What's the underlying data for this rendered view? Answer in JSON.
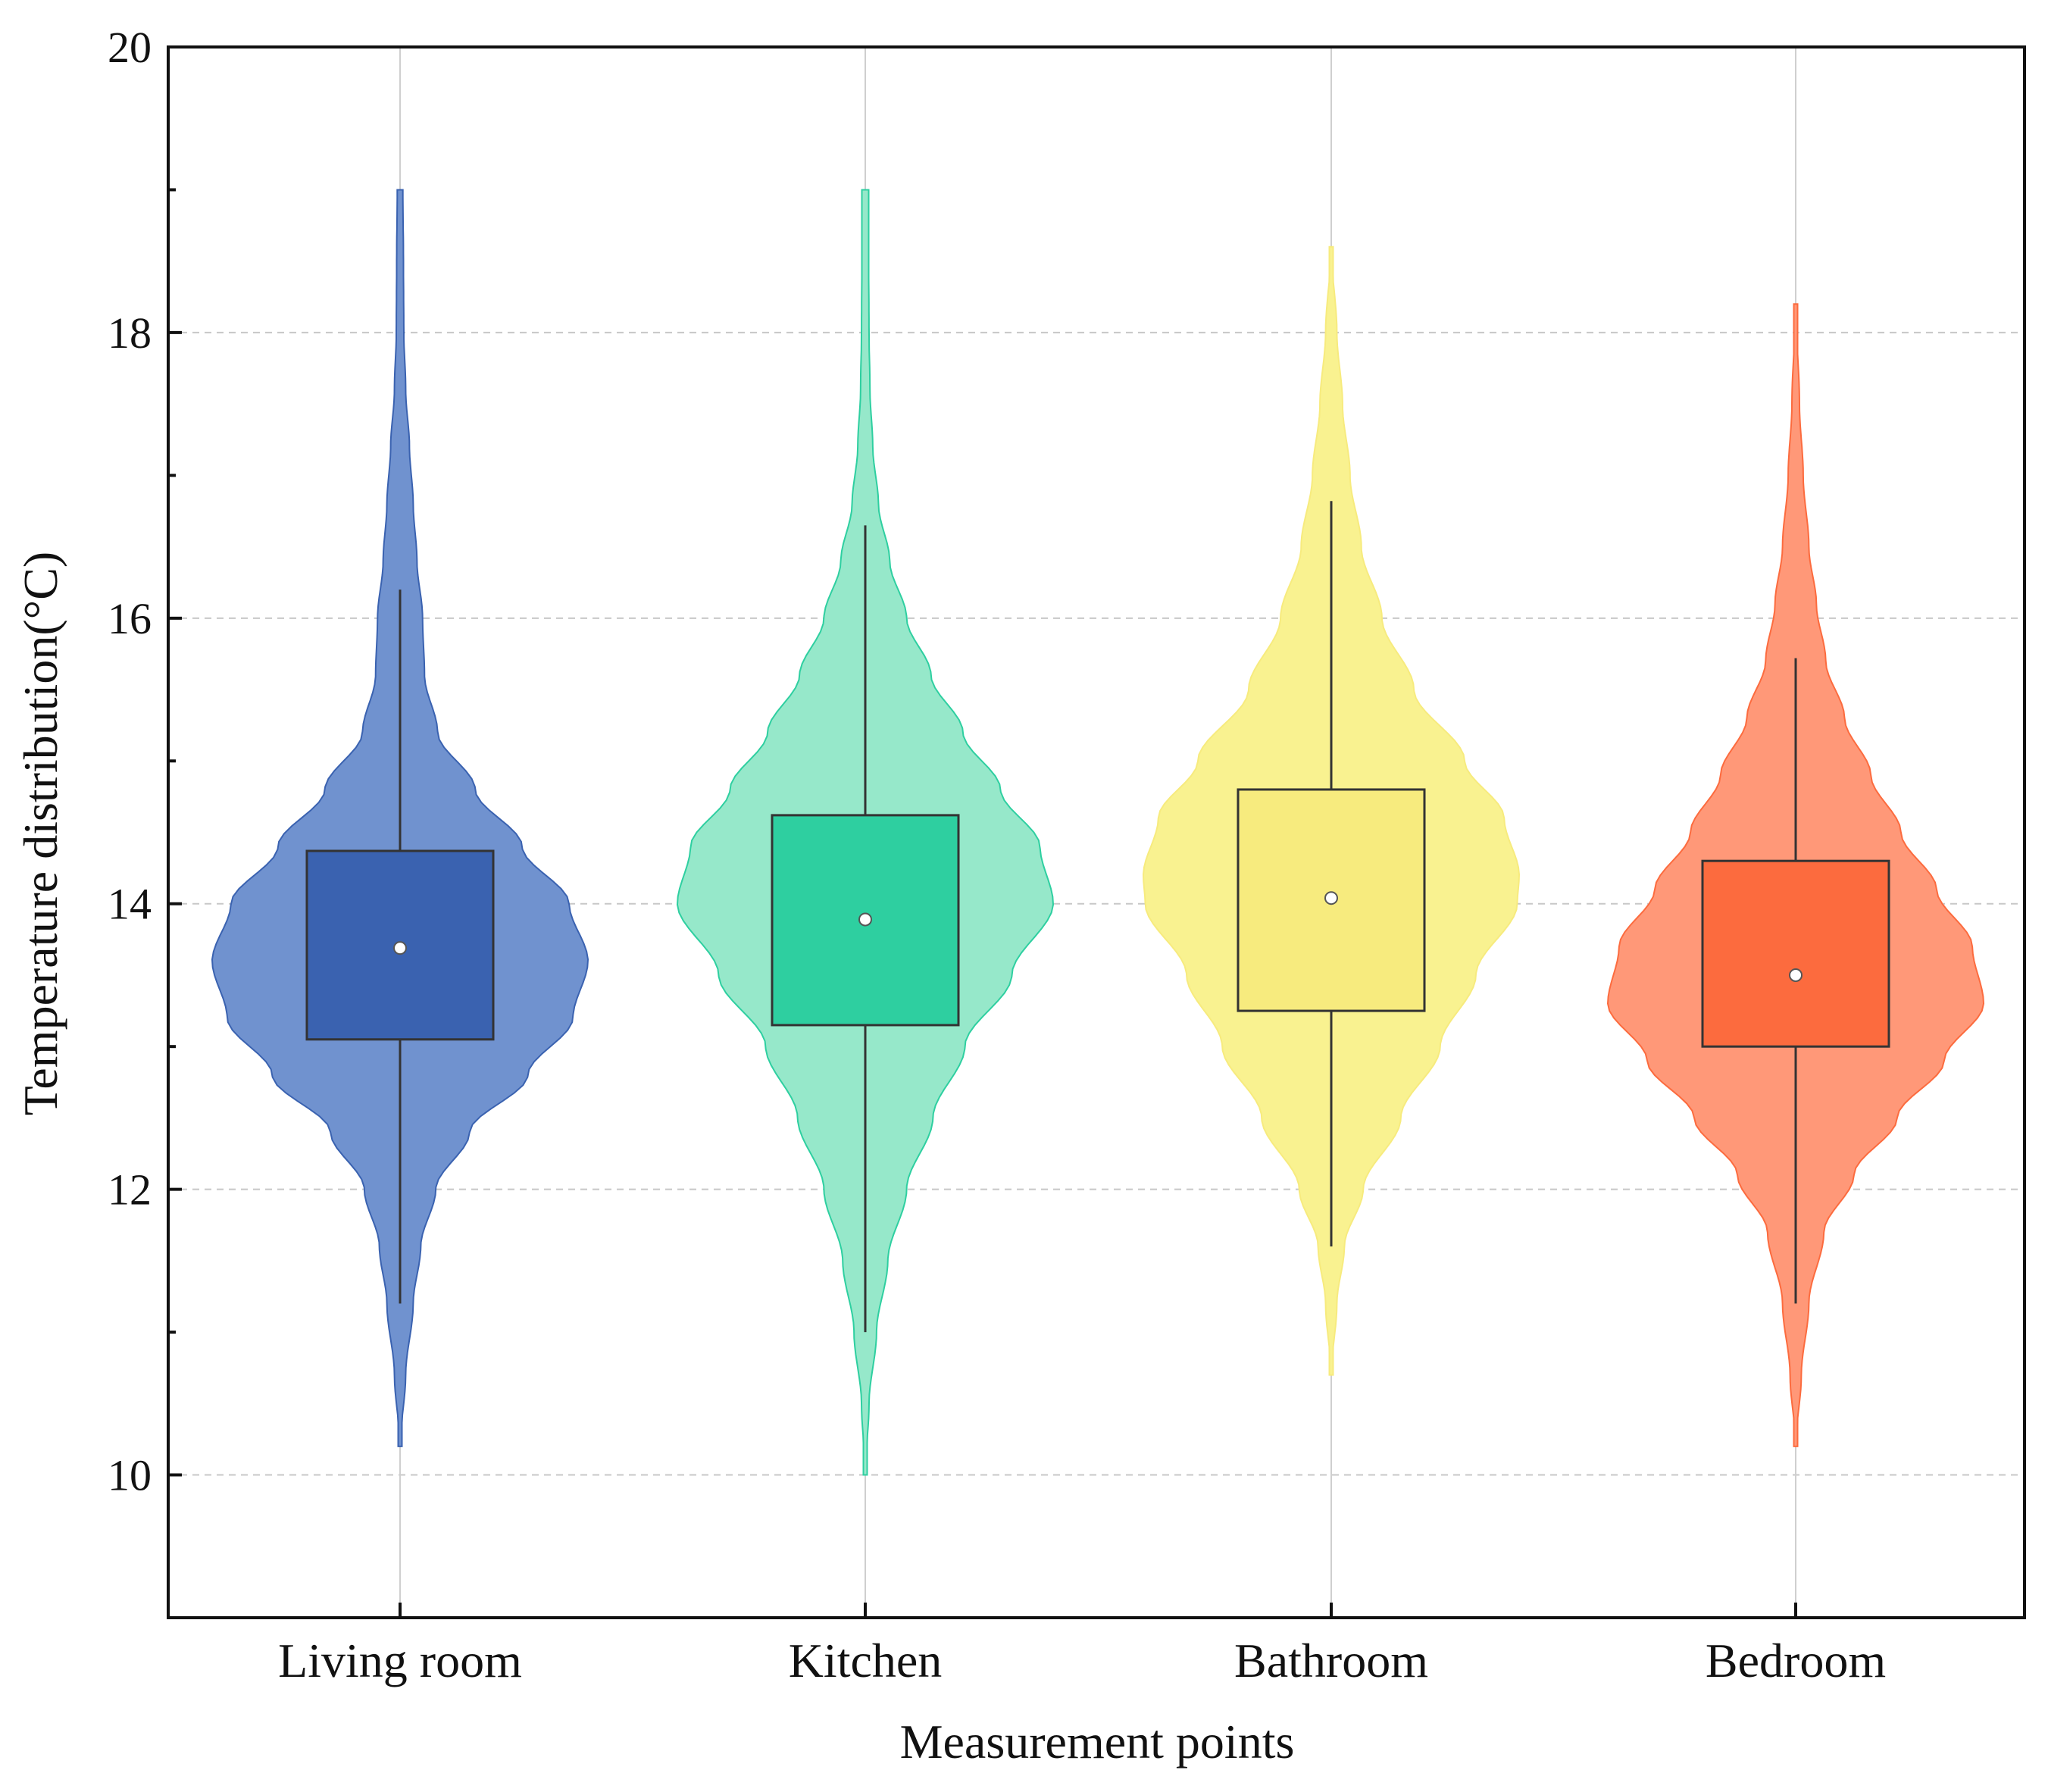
{
  "chart_data": {
    "type": "violin",
    "xlabel": "Measurement points",
    "ylabel": "Temperature distribution(°C)",
    "ylim": [
      9,
      20
    ],
    "yticks": [
      10,
      12,
      14,
      16,
      18,
      20
    ],
    "grid": {
      "horizontal": "dashed",
      "vertical": "solid"
    },
    "categories": [
      "Living room",
      "Kitchen",
      "Bathroom",
      "Bedroom"
    ],
    "series": [
      {
        "name": "Living room",
        "color": "#3A62B0",
        "violin_color": "#7092CF",
        "min": 10.2,
        "max": 19.0,
        "whisker_low": 11.2,
        "whisker_high": 16.2,
        "q1": 13.05,
        "q3": 14.37,
        "mean": 13.69,
        "density": [
          [
            10.2,
            0.0
          ],
          [
            10.7,
            0.03
          ],
          [
            11.2,
            0.07
          ],
          [
            11.6,
            0.11
          ],
          [
            12.0,
            0.19
          ],
          [
            12.4,
            0.37
          ],
          [
            12.8,
            0.68
          ],
          [
            13.2,
            0.92
          ],
          [
            13.6,
            1.0
          ],
          [
            14.0,
            0.9
          ],
          [
            14.4,
            0.65
          ],
          [
            14.8,
            0.4
          ],
          [
            15.2,
            0.2
          ],
          [
            15.6,
            0.13
          ],
          [
            16.0,
            0.12
          ],
          [
            16.4,
            0.09
          ],
          [
            16.8,
            0.07
          ],
          [
            17.2,
            0.05
          ],
          [
            17.6,
            0.03
          ],
          [
            18.0,
            0.02
          ],
          [
            18.5,
            0.018
          ],
          [
            19.0,
            0.015
          ]
        ]
      },
      {
        "name": "Kitchen",
        "color": "#2ECFA0",
        "violin_color": "#96E8CA",
        "min": 10.0,
        "max": 19.0,
        "whisker_low": 11.0,
        "whisker_high": 16.65,
        "q1": 13.15,
        "q3": 14.62,
        "mean": 13.89,
        "density": [
          [
            10.0,
            0.0
          ],
          [
            10.5,
            0.02
          ],
          [
            11.0,
            0.06
          ],
          [
            11.5,
            0.12
          ],
          [
            12.0,
            0.22
          ],
          [
            12.5,
            0.36
          ],
          [
            13.0,
            0.53
          ],
          [
            13.5,
            0.78
          ],
          [
            14.0,
            1.0
          ],
          [
            14.4,
            0.93
          ],
          [
            14.8,
            0.72
          ],
          [
            15.2,
            0.52
          ],
          [
            15.6,
            0.35
          ],
          [
            16.0,
            0.22
          ],
          [
            16.4,
            0.13
          ],
          [
            16.8,
            0.07
          ],
          [
            17.2,
            0.04
          ],
          [
            17.6,
            0.025
          ],
          [
            18.0,
            0.02
          ],
          [
            18.5,
            0.018
          ],
          [
            19.0,
            0.018
          ]
        ]
      },
      {
        "name": "Bathroom",
        "color": "#F7EB7E",
        "violin_color": "#F9F290",
        "min": 10.7,
        "max": 18.6,
        "whisker_low": 11.6,
        "whisker_high": 16.82,
        "q1": 13.25,
        "q3": 14.8,
        "mean": 14.04,
        "density": [
          [
            10.7,
            0.0
          ],
          [
            11.2,
            0.03
          ],
          [
            11.6,
            0.07
          ],
          [
            12.0,
            0.17
          ],
          [
            12.5,
            0.37
          ],
          [
            13.0,
            0.58
          ],
          [
            13.5,
            0.77
          ],
          [
            14.0,
            0.99
          ],
          [
            14.2,
            1.0
          ],
          [
            14.6,
            0.92
          ],
          [
            15.0,
            0.71
          ],
          [
            15.5,
            0.44
          ],
          [
            16.0,
            0.27
          ],
          [
            16.5,
            0.16
          ],
          [
            17.0,
            0.1
          ],
          [
            17.5,
            0.06
          ],
          [
            18.0,
            0.03
          ],
          [
            18.6,
            0.0
          ]
        ]
      },
      {
        "name": "Bedroom",
        "color": "#FC6B3E",
        "violin_color": "#FF9878",
        "min": 10.2,
        "max": 18.2,
        "whisker_low": 11.2,
        "whisker_high": 15.72,
        "q1": 13.0,
        "q3": 14.3,
        "mean": 13.5,
        "density": [
          [
            10.2,
            0.0
          ],
          [
            10.7,
            0.03
          ],
          [
            11.2,
            0.07
          ],
          [
            11.7,
            0.15
          ],
          [
            12.1,
            0.31
          ],
          [
            12.5,
            0.54
          ],
          [
            12.9,
            0.79
          ],
          [
            13.3,
            1.0
          ],
          [
            13.7,
            0.94
          ],
          [
            14.1,
            0.75
          ],
          [
            14.5,
            0.56
          ],
          [
            14.9,
            0.4
          ],
          [
            15.3,
            0.26
          ],
          [
            15.7,
            0.16
          ],
          [
            16.1,
            0.11
          ],
          [
            16.5,
            0.07
          ],
          [
            17.0,
            0.04
          ],
          [
            17.5,
            0.02
          ],
          [
            18.2,
            0.0
          ]
        ]
      }
    ]
  }
}
